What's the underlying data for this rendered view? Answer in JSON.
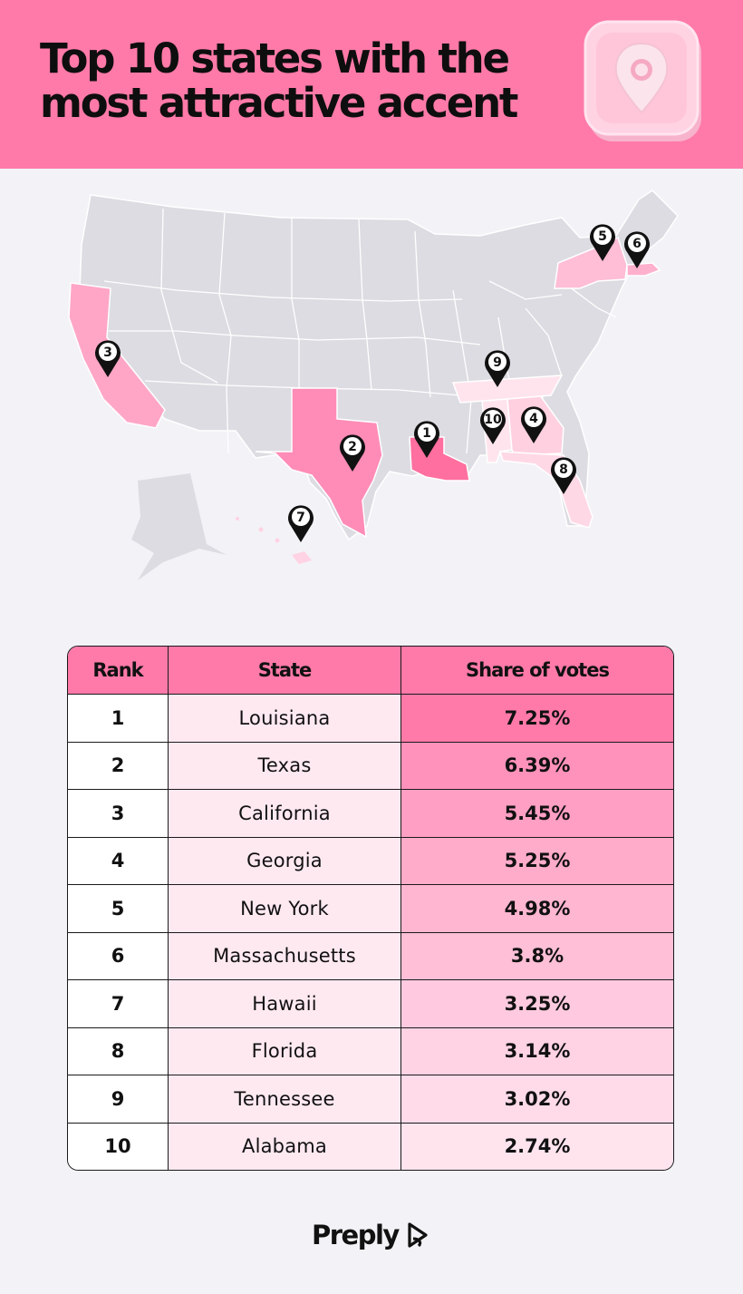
{
  "header": {
    "title_line1": "Top 10 states with the",
    "title_line2": "most attractive accent",
    "icon": "location-pin-icon"
  },
  "map": {
    "base_color": "#dcdce2",
    "highlight_colors": [
      "#ff6f9f",
      "#ff8cb6",
      "#ffa6c6",
      "#ffbdd6",
      "#ffd3e3"
    ],
    "markers": [
      {
        "rank": "1",
        "state": "Louisiana"
      },
      {
        "rank": "2",
        "state": "Texas"
      },
      {
        "rank": "3",
        "state": "California"
      },
      {
        "rank": "4",
        "state": "Georgia"
      },
      {
        "rank": "5",
        "state": "New York"
      },
      {
        "rank": "6",
        "state": "Massachusetts"
      },
      {
        "rank": "7",
        "state": "Hawaii"
      },
      {
        "rank": "8",
        "state": "Florida"
      },
      {
        "rank": "9",
        "state": "Tennessee"
      },
      {
        "rank": "10",
        "state": "Alabama"
      }
    ]
  },
  "table": {
    "headers": {
      "rank": "Rank",
      "state": "State",
      "share": "Share of votes"
    },
    "rows": [
      {
        "rank": "1",
        "state": "Louisiana",
        "share": "7.25%",
        "color": "#ff7aa8"
      },
      {
        "rank": "2",
        "state": "Texas",
        "share": "6.39%",
        "color": "#ff92ba"
      },
      {
        "rank": "3",
        "state": "California",
        "share": "5.45%",
        "color": "#ff9fc3"
      },
      {
        "rank": "4",
        "state": "Georgia",
        "share": "5.25%",
        "color": "#ffacca"
      },
      {
        "rank": "5",
        "state": "New York",
        "share": "4.98%",
        "color": "#ffb6d0"
      },
      {
        "rank": "6",
        "state": "Massachusetts",
        "share": "3.8%",
        "color": "#ffbfd7"
      },
      {
        "rank": "7",
        "state": "Hawaii",
        "share": "3.25%",
        "color": "#ffcadf"
      },
      {
        "rank": "8",
        "state": "Florida",
        "share": "3.14%",
        "color": "#ffd3e4"
      },
      {
        "rank": "9",
        "state": "Tennessee",
        "share": "3.02%",
        "color": "#ffdbe9"
      },
      {
        "rank": "10",
        "state": "Alabama",
        "share": "2.74%",
        "color": "#ffe4ee"
      }
    ]
  },
  "footer": {
    "brand": "Preply"
  }
}
